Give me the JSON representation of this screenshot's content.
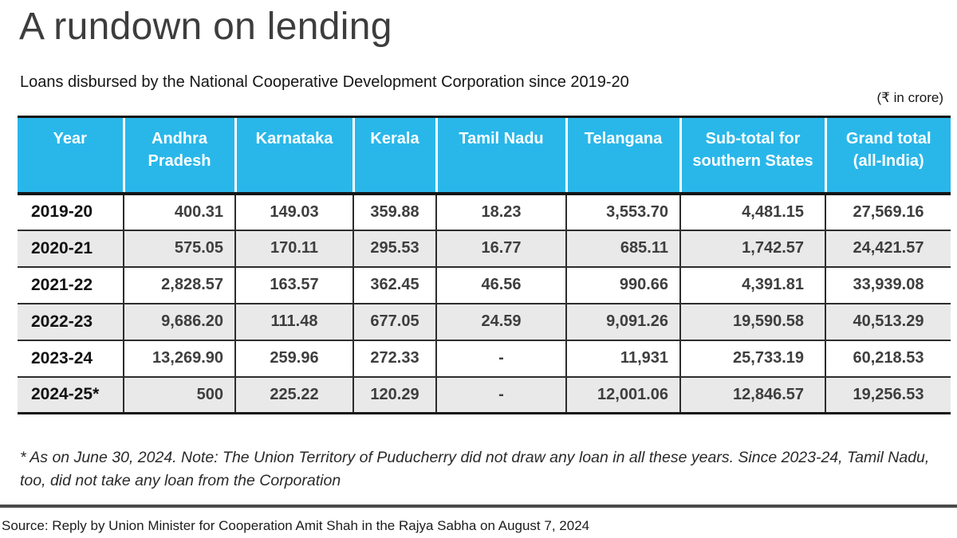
{
  "chart_data": {
    "type": "table",
    "title": "A rundown on lending",
    "subtitle": "Loans disbursed by the National Cooperative Development Corporation since 2019-20",
    "unit_label": "(₹ in crore)",
    "columns": [
      "Year",
      "Andhra Pradesh",
      "Karnataka",
      "Kerala",
      "Tamil Nadu",
      "Telangana",
      "Sub-total for southern States",
      "Grand total (all-India)"
    ],
    "rows": [
      [
        "2019-20",
        "400.31",
        "149.03",
        "359.88",
        "18.23",
        "3,553.70",
        "4,481.15",
        "27,569.16"
      ],
      [
        "2020-21",
        "575.05",
        "170.11",
        "295.53",
        "16.77",
        "685.11",
        "1,742.57",
        "24,421.57"
      ],
      [
        "2021-22",
        "2,828.57",
        "163.57",
        "362.45",
        "46.56",
        "990.66",
        "4,391.81",
        "33,939.08"
      ],
      [
        "2022-23",
        "9,686.20",
        "111.48",
        "677.05",
        "24.59",
        "9,091.26",
        "19,590.58",
        "40,513.29"
      ],
      [
        "2023-24",
        "13,269.90",
        "259.96",
        "272.33",
        "-",
        "11,931",
        "25,733.19",
        "60,218.53"
      ],
      [
        "2024-25*",
        "500",
        "225.22",
        "120.29",
        "-",
        "12,001.06",
        "12,846.57",
        "19,256.53"
      ]
    ],
    "footnote": "* As on June 30, 2024. Note: The Union Territory of Puducherry did not draw any loan in all these years. Since 2023-24, Tamil Nadu, too, did not take any loan from the Corporation",
    "source": "Source: Reply by Union Minister for Cooperation Amit Shah in the Rajya Sabha on August 7, 2024",
    "layout_hints": {
      "header_bg": "#29b7e9",
      "alt_row_bg": "#e9e9e9",
      "border_color": "#2d2d2d",
      "row_striping": "alternate white/gray starting white"
    }
  }
}
